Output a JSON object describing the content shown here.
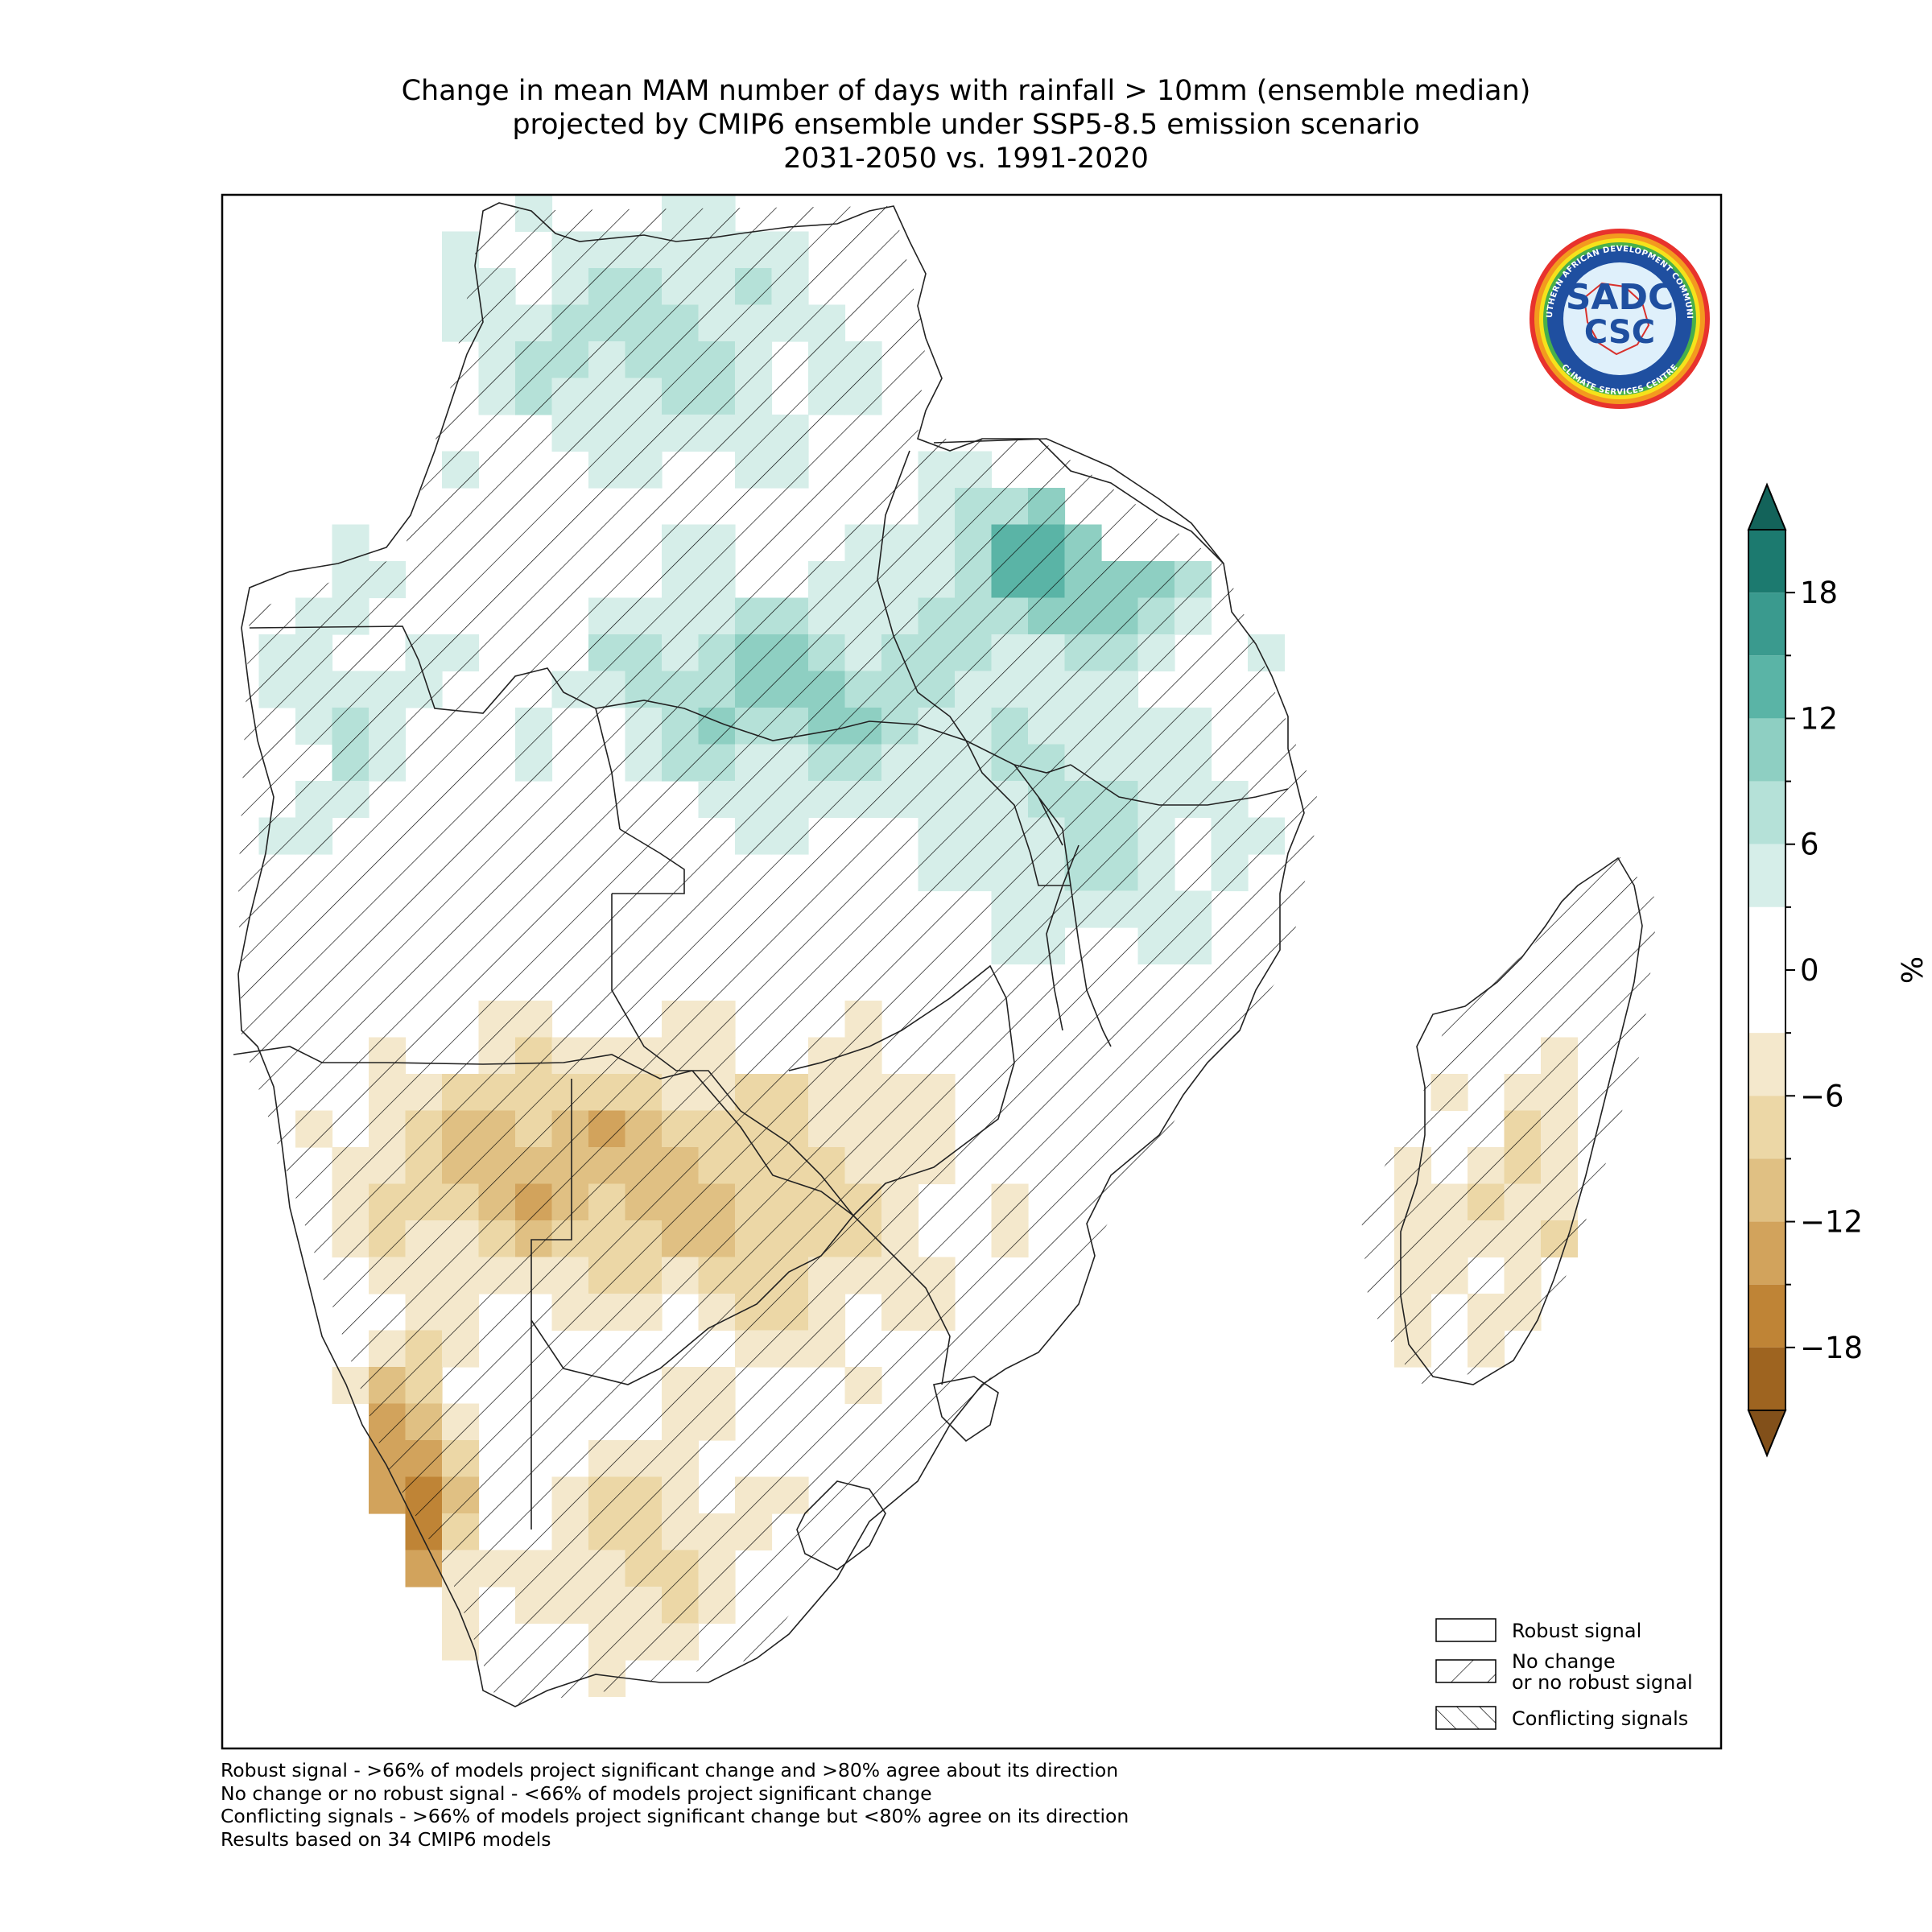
{
  "title": {
    "line1": "Change in mean MAM number of days with rainfall > 10mm (ensemble median)",
    "line2": "projected by CMIP6 ensemble under SSP5-8.5 emission scenario",
    "line3": "2031-2050 vs. 1991-2020"
  },
  "logo": {
    "ring_text_top": "SOUTHERN AFRICAN DEVELOPMENT COMMUNITY",
    "ring_text_bottom": "CLIMATE SERVICES CENTRE",
    "mark_top": "SADC",
    "mark_bottom": "CSC"
  },
  "legend": {
    "robust": "Robust signal",
    "no_change_1": "No change",
    "no_change_2": "or no robust signal",
    "conflicting": "Conflicting signals"
  },
  "footnotes": [
    "Robust signal - >66% of models project significant change and >80% agree about its direction",
    "No change or no robust signal - <66% of models project significant change",
    "Conflicting signals - >66% of models project significant change but <80% agree on its direction",
    "Results based on 34 CMIP6 models"
  ],
  "colorbar": {
    "unit": "%",
    "ticks": [
      {
        "value": 18,
        "label": "18"
      },
      {
        "value": 12,
        "label": "12"
      },
      {
        "value": 6,
        "label": "6"
      },
      {
        "value": 0,
        "label": "0"
      },
      {
        "value": -6,
        "label": "−6"
      },
      {
        "value": -12,
        "label": "−12"
      },
      {
        "value": -18,
        "label": "−18"
      }
    ],
    "bins": [
      {
        "from": 18,
        "to": 21,
        "color": "#1c7a6f"
      },
      {
        "from": 15,
        "to": 18,
        "color": "#3a9a8e"
      },
      {
        "from": 12,
        "to": 15,
        "color": "#5ab4a6"
      },
      {
        "from": 9,
        "to": 12,
        "color": "#8ecfc2"
      },
      {
        "from": 6,
        "to": 9,
        "color": "#b5e1d8"
      },
      {
        "from": 3,
        "to": 6,
        "color": "#d6eee9"
      },
      {
        "from": -3,
        "to": 3,
        "color": "#ffffff"
      },
      {
        "from": -6,
        "to": -3,
        "color": "#f4e8cc"
      },
      {
        "from": -9,
        "to": -6,
        "color": "#ecd7a6"
      },
      {
        "from": -12,
        "to": -9,
        "color": "#e0c083"
      },
      {
        "from": -15,
        "to": -12,
        "color": "#d2a35c"
      },
      {
        "from": -18,
        "to": -15,
        "color": "#bf8436"
      },
      {
        "from": -21,
        "to": -18,
        "color": "#9e6420"
      }
    ],
    "over_color": "#13635a",
    "under_color": "#82501a"
  }
}
